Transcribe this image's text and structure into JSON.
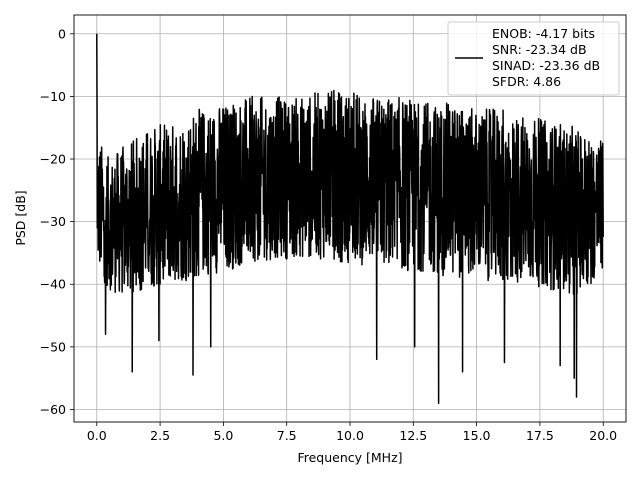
{
  "chart_data": {
    "type": "line",
    "xlabel": "Frequency [MHz]",
    "ylabel": "PSD [dB]",
    "xlim": [
      -0.9,
      20.9
    ],
    "ylim": [
      -62,
      3
    ],
    "x_ticks": [
      0.0,
      2.5,
      5.0,
      7.5,
      10.0,
      12.5,
      15.0,
      17.5,
      20.0
    ],
    "x_tick_labels": [
      "0.0",
      "2.5",
      "5.0",
      "7.5",
      "10.0",
      "12.5",
      "15.0",
      "17.5",
      "20.0"
    ],
    "y_ticks": [
      0,
      -10,
      -20,
      -30,
      -40,
      -50,
      -60
    ],
    "y_tick_labels": [
      "0",
      "−10",
      "−20",
      "−30",
      "−40",
      "−50",
      "−60"
    ],
    "grid": true,
    "legend_position": "top-right",
    "legend_lines": [
      "ENOB: -4.17 bits",
      "SNR: -23.34 dB",
      "SINAD: -23.36 dB",
      "SFDR: 4.86"
    ],
    "line_color": "#000000",
    "series": [
      {
        "x_range": [
          0,
          20
        ],
        "dc_peak": 0,
        "envelope_x": [
          0,
          0.5,
          1,
          2,
          3,
          4,
          5,
          6,
          7,
          8,
          9,
          10,
          11,
          12,
          13,
          14,
          15,
          16,
          17,
          18,
          19,
          20
        ],
        "envelope_upper": [
          -16,
          -20,
          -18,
          -15,
          -14,
          -12,
          -11,
          -10,
          -10,
          -10,
          -9,
          -9,
          -10,
          -10,
          -11,
          -11,
          -12,
          -12,
          -13,
          -14,
          -15,
          -17
        ],
        "envelope_lower": [
          -38,
          -41,
          -42,
          -41,
          -40,
          -39,
          -38,
          -37,
          -36,
          -36,
          -36,
          -37,
          -37,
          -38,
          -38,
          -39,
          -39,
          -40,
          -40,
          -41,
          -42,
          -38
        ],
        "notable_dips": [
          [
            0.35,
            -48
          ],
          [
            1.4,
            -54
          ],
          [
            2.45,
            -49
          ],
          [
            3.8,
            -54.5
          ],
          [
            4.5,
            -50
          ],
          [
            11.05,
            -52
          ],
          [
            12.55,
            -50
          ],
          [
            13.5,
            -59
          ],
          [
            14.45,
            -54
          ],
          [
            16.1,
            -52.5
          ],
          [
            18.3,
            -53
          ],
          [
            18.85,
            -55
          ],
          [
            18.95,
            -58
          ]
        ]
      }
    ]
  }
}
